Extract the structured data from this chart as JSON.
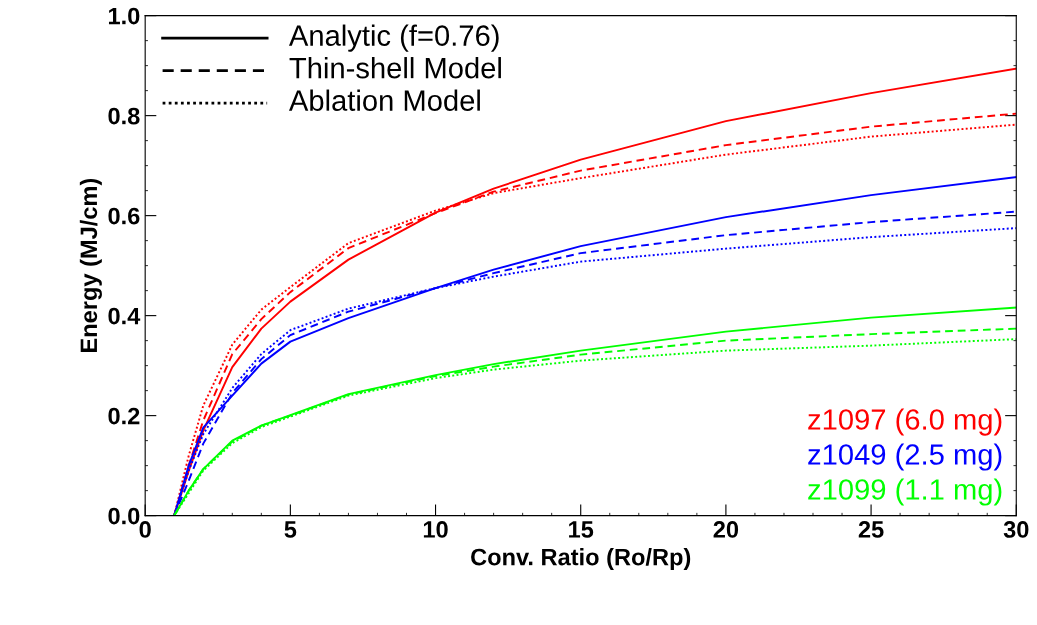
{
  "chart_data": {
    "type": "line",
    "xlabel": "Conv. Ratio (Ro/Rp)",
    "ylabel": "Energy (MJ/cm)",
    "xlim": [
      0,
      30
    ],
    "xticks": [
      0,
      5,
      10,
      15,
      20,
      25,
      30
    ],
    "ylim": [
      0,
      1.0
    ],
    "yticks": [
      {
        "value": 0,
        "label": "0.0"
      },
      0.2,
      0.4,
      0.6,
      0.8,
      {
        "value": 1.0,
        "label": "1.0"
      }
    ],
    "grid": false,
    "legend": "bottom right",
    "marker": "none",
    "x": [
      1,
      1.5,
      2,
      3,
      4,
      5,
      7,
      10,
      12,
      15,
      20,
      25,
      30
    ],
    "annotations": [
      "Analytic (f=0.76)",
      "Thin-shell Model",
      "Ablation Model"
    ],
    "series": [
      {
        "name": "z1097 (6.0 mg)",
        "color": "#ff0000",
        "line_style": "solid",
        "values": [
          0,
          0.09,
          0.17,
          0.297,
          0.374,
          0.428,
          0.512,
          0.606,
          0.654,
          0.712,
          0.789,
          0.845,
          0.894
        ]
      },
      {
        "color": "#ff0000",
        "line_style": "dashed",
        "values": [
          0,
          0.1,
          0.19,
          0.323,
          0.393,
          0.447,
          0.535,
          0.605,
          0.648,
          0.69,
          0.741,
          0.778,
          0.804
        ]
      },
      {
        "color": "#ff0000",
        "line_style": "dotted",
        "values": [
          0,
          0.12,
          0.22,
          0.342,
          0.412,
          0.457,
          0.545,
          0.61,
          0.645,
          0.675,
          0.722,
          0.758,
          0.782
        ]
      },
      {
        "name": "z1049 (2.5 mg)",
        "color": "#0000ff",
        "line_style": "solid",
        "values": [
          0,
          0.1,
          0.176,
          0.24,
          0.304,
          0.348,
          0.395,
          0.455,
          0.492,
          0.539,
          0.597,
          0.641,
          0.677
        ]
      },
      {
        "color": "#0000ff",
        "line_style": "dashed",
        "values": [
          0,
          0.07,
          0.144,
          0.245,
          0.313,
          0.361,
          0.408,
          0.455,
          0.485,
          0.525,
          0.561,
          0.587,
          0.608
        ]
      },
      {
        "color": "#0000ff",
        "line_style": "dotted",
        "values": [
          0,
          0.09,
          0.163,
          0.255,
          0.323,
          0.371,
          0.414,
          0.455,
          0.478,
          0.508,
          0.534,
          0.557,
          0.575
        ]
      },
      {
        "name": "z1099 (1.1 mg)",
        "color": "#00ff00",
        "line_style": "solid",
        "values": [
          0,
          0.05,
          0.093,
          0.15,
          0.18,
          0.201,
          0.243,
          0.281,
          0.303,
          0.33,
          0.368,
          0.396,
          0.416
        ]
      },
      {
        "color": "#00ff00",
        "line_style": "dashed",
        "values": [
          0,
          0.05,
          0.093,
          0.148,
          0.18,
          0.2,
          0.242,
          0.279,
          0.298,
          0.322,
          0.35,
          0.363,
          0.374
        ]
      },
      {
        "color": "#00ff00",
        "line_style": "dotted",
        "values": [
          0,
          0.045,
          0.09,
          0.145,
          0.177,
          0.198,
          0.24,
          0.275,
          0.292,
          0.31,
          0.33,
          0.34,
          0.353
        ]
      }
    ]
  }
}
